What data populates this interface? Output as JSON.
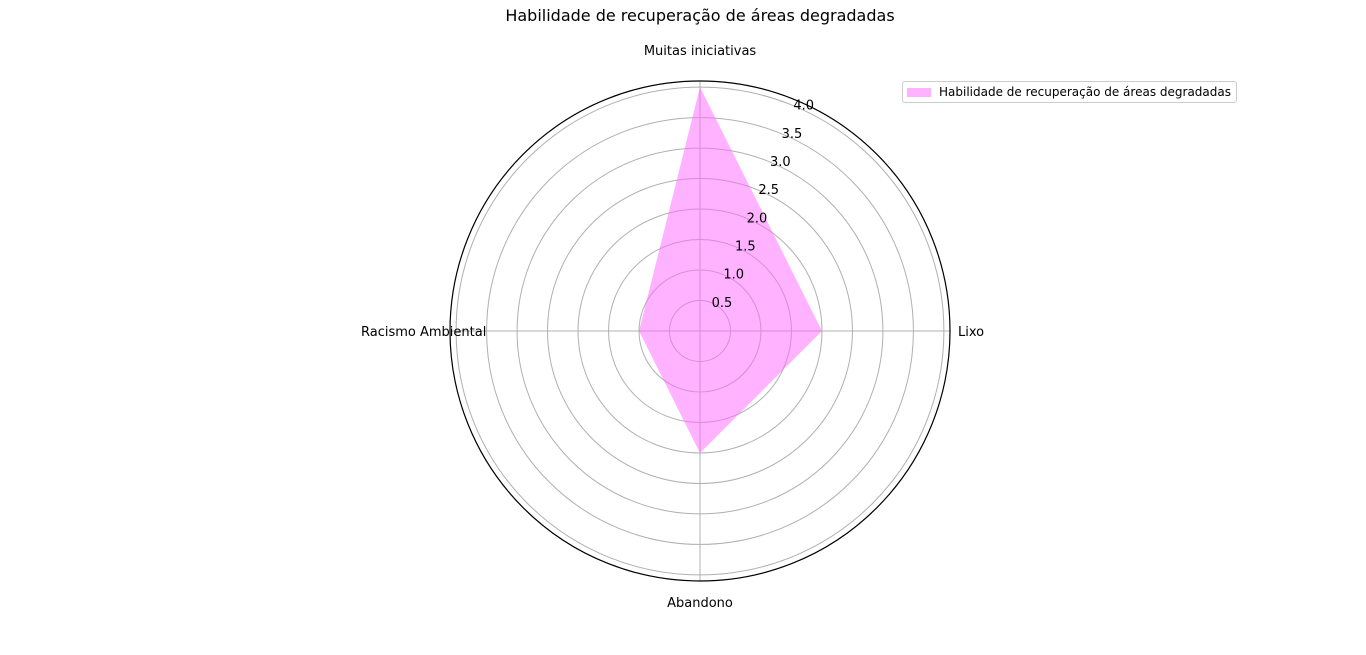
{
  "chart_data": {
    "type": "radar",
    "title": "Habilidade de recuperação de áreas degradadas",
    "categories": [
      "Lixo",
      "Muitas iniciativas",
      "Racismo Ambiental",
      "Abandono"
    ],
    "series": [
      {
        "name": "Habilidade de recuperação de áreas degradadas",
        "values": [
          2,
          4,
          1,
          2
        ],
        "color": "#ff66ff"
      }
    ],
    "rlim": [
      0,
      4.1
    ],
    "r_ticks": [
      "0.5",
      "1.0",
      "1.5",
      "2.0",
      "2.5",
      "3.0",
      "3.5",
      "4.0"
    ],
    "r_tick_values": [
      0.5,
      1.0,
      1.5,
      2.0,
      2.5,
      3.0,
      3.5,
      4.0
    ],
    "grid": true,
    "legend_position": "top-right"
  }
}
